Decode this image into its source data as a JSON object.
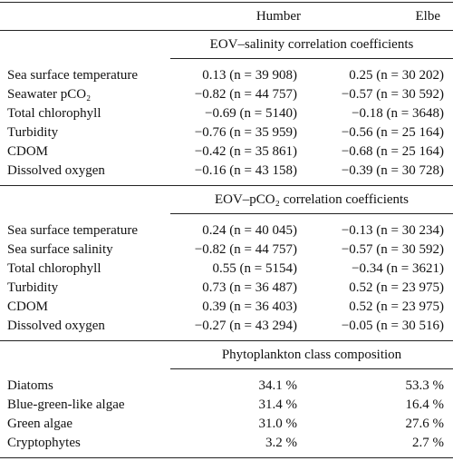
{
  "table": {
    "columns": [
      "Humber",
      "Elbe"
    ],
    "sections": [
      {
        "title": "EOV–salinity correlation coefficients",
        "rows": [
          [
            "Sea surface temperature",
            "0.13 (n = 39 908)",
            "0.25 (n = 30 202)"
          ],
          [
            "Seawater pCO₂",
            "−0.82 (n = 44 757)",
            "−0.57 (n = 30 592)"
          ],
          [
            "Total chlorophyll",
            "−0.69 (n = 5140)",
            "−0.18 (n = 3648)"
          ],
          [
            "Turbidity",
            "−0.76 (n = 35 959)",
            "−0.56 (n = 25 164)"
          ],
          [
            "CDOM",
            "−0.42 (n = 35 861)",
            "−0.68 (n = 25 164)"
          ],
          [
            "Dissolved oxygen",
            "−0.16 (n = 43 158)",
            "−0.39 (n = 30 728)"
          ]
        ]
      },
      {
        "title": "EOV–pCO₂ correlation coefficients",
        "rows": [
          [
            "Sea surface temperature",
            "0.24 (n = 40 045)",
            "−0.13 (n = 30 234)"
          ],
          [
            "Sea surface salinity",
            "−0.82 (n = 44 757)",
            "−0.57 (n = 30 592)"
          ],
          [
            "Total chlorophyll",
            "0.55 (n = 5154)",
            "−0.34 (n = 3621)"
          ],
          [
            "Turbidity",
            "0.73 (n = 36 487)",
            "0.52 (n = 23 975)"
          ],
          [
            "CDOM",
            "0.39 (n = 36 403)",
            "0.52 (n = 23 975)"
          ],
          [
            "Dissolved oxygen",
            "−0.27 (n = 43 294)",
            "−0.05 (n = 30 516)"
          ]
        ]
      },
      {
        "title": "Phytoplankton class composition",
        "rows": [
          [
            "Diatoms",
            "34.1 %",
            "53.3 %"
          ],
          [
            "Blue-green-like algae",
            "31.4 %",
            "16.4 %"
          ],
          [
            "Green algae",
            "31.0 %",
            "27.6 %"
          ],
          [
            "Cryptophytes",
            "3.2 %",
            "2.7 %"
          ]
        ]
      }
    ]
  }
}
